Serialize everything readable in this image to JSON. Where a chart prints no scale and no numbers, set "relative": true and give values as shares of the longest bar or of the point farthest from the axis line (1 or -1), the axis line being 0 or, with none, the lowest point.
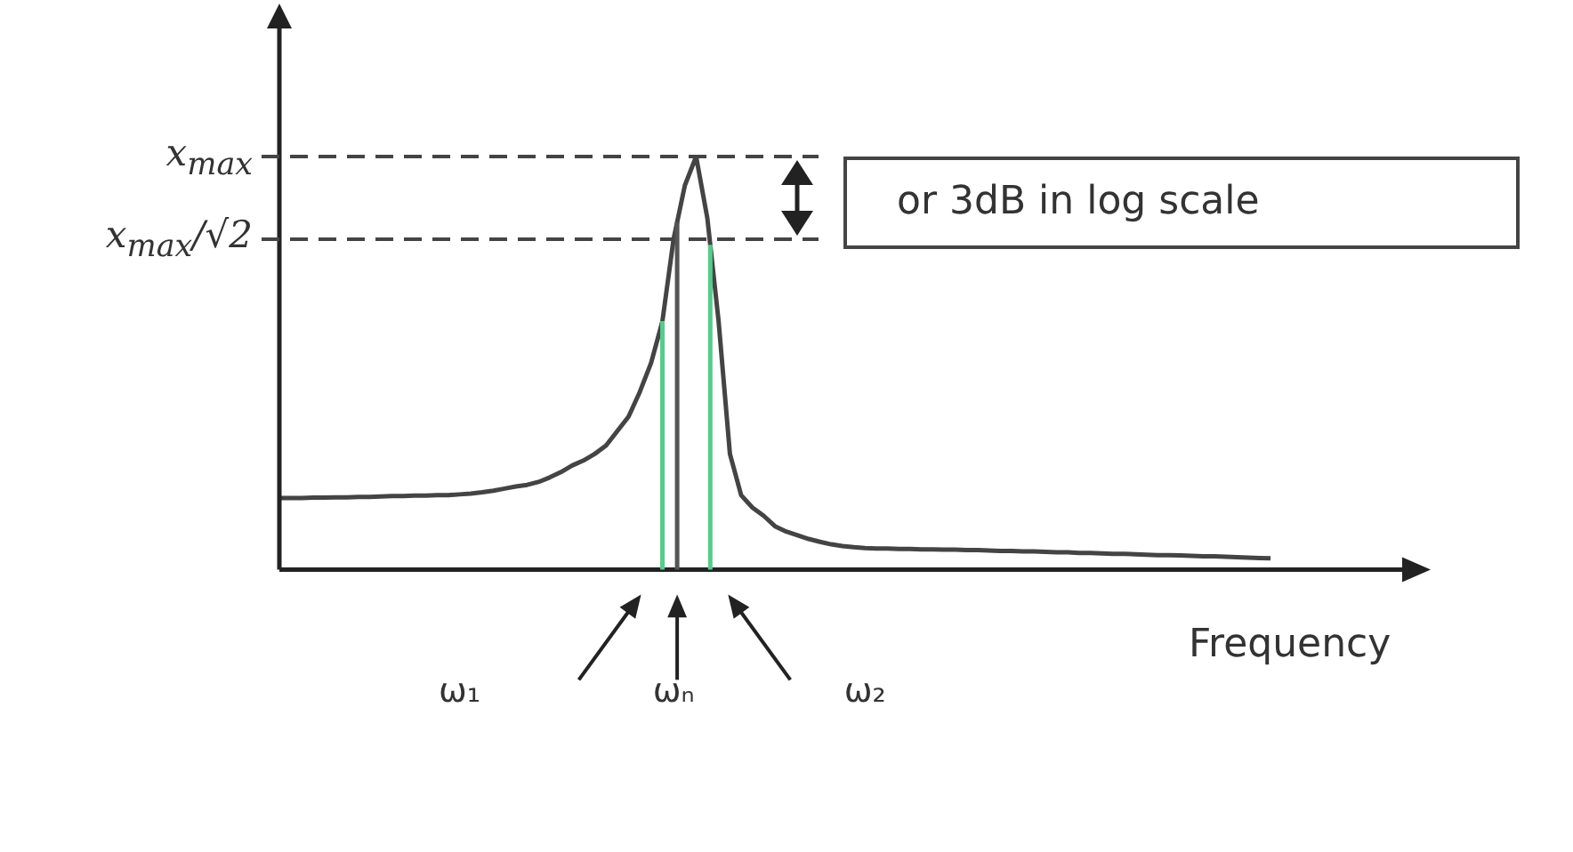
{
  "chart_data": {
    "type": "line",
    "relative": true,
    "xlabel": "Frequency",
    "marker": "none",
    "categories": [
      null,
      null,
      null,
      null,
      null,
      null,
      null,
      null,
      null,
      null,
      null,
      null,
      null,
      null,
      null,
      null,
      "ω₁",
      null,
      null,
      null,
      null,
      null,
      null,
      null,
      null,
      null,
      null,
      null,
      null,
      null,
      null,
      null,
      null,
      null,
      null,
      "ωₙ",
      null,
      null,
      null,
      null,
      null,
      null,
      null,
      null,
      null,
      null,
      null,
      null,
      null,
      null,
      null,
      null,
      "ω₂",
      null,
      null,
      null,
      null,
      null,
      null,
      null,
      null,
      null,
      null,
      null,
      null,
      null,
      null,
      null,
      null,
      null,
      null,
      null,
      null,
      null,
      null,
      null,
      null,
      null,
      null,
      null,
      null,
      null,
      null,
      null,
      null,
      null,
      null,
      null,
      null,
      null,
      null,
      null,
      null,
      null,
      null,
      null,
      null,
      null,
      null,
      null,
      null
    ],
    "series": [
      {
        "color": "#444444",
        "values": [
          0.173,
          0.173,
          0.173,
          0.174,
          0.174,
          0.175,
          0.175,
          0.176,
          0.176,
          0.177,
          0.178,
          0.178,
          0.179,
          0.179,
          0.18,
          0.18,
          0.182,
          0.184,
          0.187,
          0.191,
          0.196,
          0.201,
          0.205,
          0.212,
          0.223,
          0.236,
          0.252,
          0.264,
          0.28,
          0.3,
          0.335,
          0.37,
          0.43,
          0.5,
          0.6,
          0.8,
          0.93,
          1,
          0.85,
          0.6,
          0.28,
          0.18,
          0.15,
          0.13,
          0.105,
          0.092,
          0.083,
          0.074,
          0.067,
          0.061,
          0.057,
          0.054,
          0.052,
          0.051,
          0.051,
          0.05,
          0.05,
          0.049,
          0.049,
          0.048,
          0.048,
          0.047,
          0.047,
          0.046,
          0.045,
          0.045,
          0.044,
          0.044,
          0.043,
          0.042,
          0.042,
          0.04,
          0.04,
          0.039,
          0.038,
          0.038,
          0.037,
          0.036,
          0.035,
          0.035,
          0.034,
          0.033,
          0.032,
          0.032,
          0.031,
          0.03,
          0.029,
          0.028,
          0.027,
          null,
          null,
          null,
          null,
          null,
          null,
          null,
          null,
          null,
          null,
          null,
          null
        ]
      }
    ],
    "ref_lines": [
      {
        "axis": "y",
        "value": 1,
        "label": "x$_{max}$",
        "line_style": "dashed",
        "color": "#444444"
      },
      {
        "axis": "y",
        "value": 0.8,
        "label": "x$_{max}$/√2",
        "line_style": "dashed",
        "color": "#444444"
      }
    ],
    "annotations": [
      "or 3dB in log scale"
    ]
  }
}
